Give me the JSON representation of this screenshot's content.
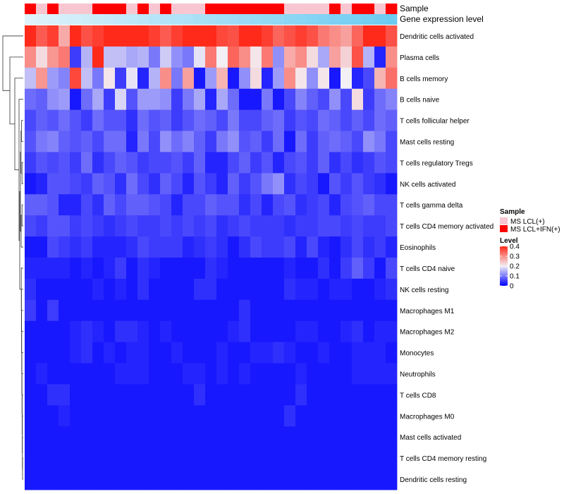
{
  "chart_data": {
    "type": "heatmap",
    "annotation_tracks": [
      {
        "name": "Sample",
        "label": "Sample"
      },
      {
        "name": "Gene expression level",
        "label": "Gene expression level"
      }
    ],
    "sample_annotation": [
      "r",
      "p",
      "r",
      "p",
      "p",
      "p",
      "r",
      "r",
      "r",
      "p",
      "r",
      "p",
      "r",
      "p",
      "p",
      "p",
      "r",
      "r",
      "r",
      "r",
      "r",
      "r",
      "r",
      "p",
      "p",
      "p",
      "p",
      "r",
      "p",
      "r",
      "r",
      "p",
      "r"
    ],
    "gene_expression_ramp": [
      "#dff3fb",
      "#6ccbf1"
    ],
    "rows": [
      "Dendritic cells activated",
      "Plasma cells",
      "B cells memory",
      "B cells naive",
      "T cells follicular helper",
      "Mast cells resting",
      "T cells regulatory  Tregs",
      "NK cells activated",
      "T cells gamma delta",
      "T cells CD4 memory activated",
      "Eosinophils",
      "T cells CD4 naive",
      "NK cells resting",
      "Macrophages M1",
      "Macrophages M2",
      "Monocytes",
      "Neutrophils",
      "T cells CD8",
      "Macrophages M0",
      "Mast cells activated",
      "T cells CD4 memory resting",
      "Dendritic cells resting"
    ],
    "n_columns": 33,
    "values": [
      [
        0.4,
        0.35,
        0.38,
        0.27,
        0.4,
        0.36,
        0.38,
        0.4,
        0.4,
        0.4,
        0.4,
        0.38,
        0.35,
        0.38,
        0.4,
        0.4,
        0.4,
        0.37,
        0.36,
        0.4,
        0.4,
        0.38,
        0.34,
        0.36,
        0.38,
        0.36,
        0.32,
        0.3,
        0.28,
        0.34,
        0.4,
        0.4,
        0.36
      ],
      [
        0.3,
        0.22,
        0.29,
        0.32,
        0.05,
        0.15,
        0.4,
        0.16,
        0.16,
        0.14,
        0.15,
        0.1,
        0.17,
        0.12,
        0.1,
        0.19,
        0.32,
        0.2,
        0.34,
        0.3,
        0.21,
        0.32,
        0.12,
        0.27,
        0.3,
        0.22,
        0.14,
        0.28,
        0.23,
        0.36,
        0.15,
        0.03,
        0.3
      ],
      [
        0.16,
        0.29,
        0.13,
        0.11,
        0.37,
        0.16,
        0.1,
        0.21,
        0.05,
        0.19,
        0.03,
        0.15,
        0.3,
        0.1,
        0.28,
        0.02,
        0.13,
        0.26,
        0.02,
        0.12,
        0.22,
        0.03,
        0.13,
        0.3,
        0.21,
        0.12,
        0.21,
        0.02,
        0.2,
        0.03,
        0.06,
        0.26,
        0.33
      ],
      [
        0.09,
        0.08,
        0.12,
        0.13,
        0.02,
        0.09,
        0.14,
        0.05,
        0.18,
        0.07,
        0.13,
        0.13,
        0.12,
        0.05,
        0.1,
        0.14,
        0.03,
        0.14,
        0.09,
        0.02,
        0.02,
        0.1,
        0.02,
        0.06,
        0.11,
        0.08,
        0.06,
        0.12,
        0.06,
        0.22,
        0.05,
        0.09,
        0.11
      ],
      [
        0.06,
        0.08,
        0.07,
        0.09,
        0.07,
        0.05,
        0.09,
        0.07,
        0.07,
        0.04,
        0.09,
        0.07,
        0.08,
        0.05,
        0.07,
        0.09,
        0.08,
        0.06,
        0.1,
        0.06,
        0.06,
        0.08,
        0.09,
        0.05,
        0.07,
        0.06,
        0.09,
        0.08,
        0.06,
        0.08,
        0.06,
        0.09,
        0.08
      ],
      [
        0.07,
        0.1,
        0.11,
        0.08,
        0.07,
        0.08,
        0.06,
        0.09,
        0.09,
        0.03,
        0.1,
        0.06,
        0.12,
        0.09,
        0.11,
        0.08,
        0.05,
        0.1,
        0.12,
        0.07,
        0.08,
        0.05,
        0.09,
        0.02,
        0.09,
        0.05,
        0.08,
        0.09,
        0.08,
        0.06,
        0.12,
        0.1,
        0.06
      ],
      [
        0.05,
        0.07,
        0.06,
        0.07,
        0.05,
        0.09,
        0.04,
        0.06,
        0.08,
        0.07,
        0.05,
        0.06,
        0.06,
        0.07,
        0.05,
        0.08,
        0.03,
        0.03,
        0.06,
        0.08,
        0.05,
        0.07,
        0.03,
        0.06,
        0.07,
        0.05,
        0.08,
        0.04,
        0.06,
        0.04,
        0.05,
        0.07,
        0.06
      ],
      [
        0.02,
        0.03,
        0.07,
        0.07,
        0.06,
        0.05,
        0.08,
        0.07,
        0.04,
        0.09,
        0.06,
        0.04,
        0.08,
        0.06,
        0.03,
        0.07,
        0.05,
        0.03,
        0.08,
        0.05,
        0.07,
        0.1,
        0.12,
        0.04,
        0.06,
        0.05,
        0.02,
        0.07,
        0.05,
        0.07,
        0.05,
        0.04,
        0.02
      ],
      [
        0.08,
        0.08,
        0.07,
        0.03,
        0.03,
        0.06,
        0.04,
        0.08,
        0.06,
        0.08,
        0.08,
        0.07,
        0.06,
        0.03,
        0.06,
        0.06,
        0.08,
        0.07,
        0.07,
        0.04,
        0.06,
        0.03,
        0.06,
        0.07,
        0.04,
        0.05,
        0.06,
        0.03,
        0.06,
        0.07,
        0.08,
        0.06,
        0.06
      ],
      [
        0.06,
        0.05,
        0.07,
        0.07,
        0.05,
        0.06,
        0.05,
        0.04,
        0.05,
        0.06,
        0.05,
        0.05,
        0.06,
        0.05,
        0.06,
        0.05,
        0.06,
        0.04,
        0.05,
        0.06,
        0.05,
        0.05,
        0.05,
        0.04,
        0.05,
        0.05,
        0.06,
        0.06,
        0.05,
        0.06,
        0.05,
        0.05,
        0.06
      ],
      [
        0.02,
        0.02,
        0.06,
        0.05,
        0.04,
        0.05,
        0.03,
        0.03,
        0.03,
        0.04,
        0.06,
        0.05,
        0.05,
        0.05,
        0.03,
        0.04,
        0.05,
        0.04,
        0.02,
        0.04,
        0.06,
        0.05,
        0.05,
        0.06,
        0.03,
        0.06,
        0.03,
        0.02,
        0.04,
        0.06,
        0.04,
        0.05,
        0.03
      ],
      [
        0.03,
        0.03,
        0.03,
        0.03,
        0.02,
        0.03,
        0.02,
        0.03,
        0.05,
        0.02,
        0.04,
        0.03,
        0.02,
        0.02,
        0.02,
        0.02,
        0.04,
        0.03,
        0.02,
        0.02,
        0.02,
        0.02,
        0.02,
        0.03,
        0.02,
        0.02,
        0.04,
        0.02,
        0.05,
        0.08,
        0.05,
        0.02,
        0.06
      ],
      [
        0.04,
        0.02,
        0.02,
        0.02,
        0.02,
        0.02,
        0.03,
        0.02,
        0.03,
        0.02,
        0.04,
        0.02,
        0.02,
        0.02,
        0.02,
        0.04,
        0.04,
        0.02,
        0.02,
        0.02,
        0.02,
        0.02,
        0.02,
        0.04,
        0.03,
        0.03,
        0.02,
        0.03,
        0.03,
        0.02,
        0.02,
        0.03,
        0.04
      ],
      [
        0.05,
        0.02,
        0.05,
        0.02,
        0.02,
        0.02,
        0.02,
        0.02,
        0.02,
        0.02,
        0.02,
        0.02,
        0.02,
        0.02,
        0.02,
        0.02,
        0.02,
        0.02,
        0.02,
        0.04,
        0.02,
        0.02,
        0.02,
        0.02,
        0.02,
        0.02,
        0.02,
        0.02,
        0.02,
        0.02,
        0.02,
        0.02,
        0.02
      ],
      [
        0.02,
        0.02,
        0.02,
        0.02,
        0.03,
        0.04,
        0.03,
        0.02,
        0.04,
        0.04,
        0.03,
        0.02,
        0.03,
        0.02,
        0.02,
        0.02,
        0.02,
        0.02,
        0.03,
        0.04,
        0.02,
        0.02,
        0.02,
        0.02,
        0.03,
        0.03,
        0.02,
        0.02,
        0.03,
        0.04,
        0.02,
        0.03,
        0.03
      ],
      [
        0.02,
        0.02,
        0.02,
        0.02,
        0.03,
        0.04,
        0.02,
        0.03,
        0.02,
        0.03,
        0.03,
        0.02,
        0.02,
        0.03,
        0.02,
        0.02,
        0.02,
        0.03,
        0.02,
        0.02,
        0.03,
        0.03,
        0.04,
        0.03,
        0.02,
        0.02,
        0.03,
        0.02,
        0.02,
        0.03,
        0.03,
        0.03,
        0.02
      ],
      [
        0.02,
        0.03,
        0.02,
        0.02,
        0.02,
        0.02,
        0.02,
        0.02,
        0.03,
        0.03,
        0.03,
        0.02,
        0.02,
        0.02,
        0.03,
        0.03,
        0.02,
        0.03,
        0.02,
        0.03,
        0.02,
        0.02,
        0.02,
        0.02,
        0.03,
        0.02,
        0.02,
        0.02,
        0.02,
        0.03,
        0.03,
        0.03,
        0.03
      ],
      [
        0.02,
        0.02,
        0.04,
        0.04,
        0.02,
        0.02,
        0.02,
        0.02,
        0.02,
        0.02,
        0.02,
        0.02,
        0.02,
        0.02,
        0.02,
        0.04,
        0.02,
        0.02,
        0.02,
        0.02,
        0.02,
        0.02,
        0.02,
        0.02,
        0.04,
        0.02,
        0.02,
        0.02,
        0.02,
        0.02,
        0.02,
        0.02,
        0.02
      ],
      [
        0.02,
        0.02,
        0.02,
        0.03,
        0.02,
        0.02,
        0.02,
        0.02,
        0.02,
        0.02,
        0.02,
        0.02,
        0.02,
        0.02,
        0.02,
        0.02,
        0.02,
        0.02,
        0.02,
        0.02,
        0.02,
        0.02,
        0.02,
        0.04,
        0.02,
        0.02,
        0.02,
        0.02,
        0.02,
        0.02,
        0.02,
        0.02,
        0.02
      ],
      [
        0.02,
        0.02,
        0.02,
        0.02,
        0.02,
        0.02,
        0.02,
        0.02,
        0.02,
        0.02,
        0.02,
        0.02,
        0.02,
        0.02,
        0.02,
        0.02,
        0.02,
        0.02,
        0.02,
        0.02,
        0.02,
        0.02,
        0.02,
        0.02,
        0.02,
        0.02,
        0.02,
        0.02,
        0.02,
        0.02,
        0.02,
        0.02,
        0.02
      ],
      [
        0.02,
        0.02,
        0.02,
        0.02,
        0.02,
        0.02,
        0.02,
        0.02,
        0.02,
        0.02,
        0.02,
        0.02,
        0.02,
        0.02,
        0.02,
        0.02,
        0.02,
        0.02,
        0.02,
        0.02,
        0.02,
        0.02,
        0.02,
        0.02,
        0.02,
        0.02,
        0.02,
        0.02,
        0.02,
        0.02,
        0.02,
        0.02,
        0.02
      ],
      [
        0.02,
        0.02,
        0.02,
        0.02,
        0.02,
        0.02,
        0.02,
        0.02,
        0.02,
        0.02,
        0.02,
        0.02,
        0.02,
        0.02,
        0.02,
        0.02,
        0.02,
        0.02,
        0.02,
        0.02,
        0.02,
        0.02,
        0.02,
        0.02,
        0.02,
        0.02,
        0.02,
        0.02,
        0.02,
        0.02,
        0.02,
        0.02,
        0.02
      ]
    ],
    "color_scale": {
      "min": 0,
      "max": 0.4,
      "stops": [
        {
          "value": 0,
          "color": "#0000ff"
        },
        {
          "value": 0.2,
          "color": "#f2eff5"
        },
        {
          "value": 0.4,
          "color": "#ff2a1a"
        }
      ]
    },
    "legend": {
      "sample_title": "Sample",
      "sample_entries": [
        {
          "key": "p",
          "label": "MS LCL(+)",
          "color": "#f7c6d0"
        },
        {
          "key": "r",
          "label": "MS LCL+IFN(+)",
          "color": "#ff0000"
        }
      ],
      "level_title": "Level",
      "level_ticks": [
        {
          "value": 0.4,
          "label": "0.4"
        },
        {
          "value": 0.3,
          "label": "0.3"
        },
        {
          "value": 0.2,
          "label": "0.2"
        },
        {
          "value": 0.1,
          "label": "0.1"
        },
        {
          "value": 0,
          "label": "0"
        }
      ],
      "position": "right"
    },
    "dendrogram": "rows, left side"
  }
}
